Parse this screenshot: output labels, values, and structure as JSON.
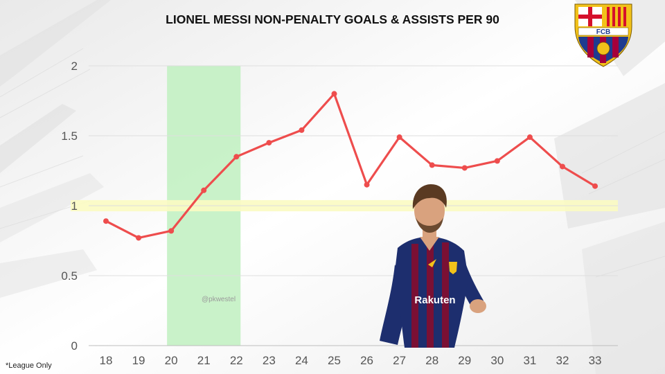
{
  "title": "LIONEL MESSI NON-PENALTY GOALS & ASSISTS PER 90",
  "footnote": "*League Only",
  "watermark": "@pkwestel",
  "crest": {
    "label": "FCB",
    "colors": {
      "gold": "#f2c21a",
      "blue": "#1f3b8f",
      "claret": "#a5003b",
      "red": "#d5102b"
    }
  },
  "player_image": {
    "icon": "player-photo",
    "kit_colors": {
      "blue": "#1d2e6e",
      "claret": "#7a1034",
      "skin": "#d9a27e"
    },
    "sponsor_text": "Rakuten"
  },
  "chart_data": {
    "type": "line",
    "title": "LIONEL MESSI NON-PENALTY GOALS & ASSISTS PER 90",
    "xlabel": "",
    "ylabel": "",
    "x": [
      18,
      19,
      20,
      21,
      22,
      23,
      24,
      25,
      26,
      27,
      28,
      29,
      30,
      31,
      32,
      33
    ],
    "x_tick_labels": [
      "18",
      "19",
      "20",
      "21",
      "22",
      "23",
      "24",
      "25",
      "26",
      "27",
      "28",
      "29",
      "30",
      "31",
      "32",
      "33"
    ],
    "series": [
      {
        "values": [
          0.89,
          0.77,
          0.82,
          1.11,
          1.35,
          1.45,
          1.54,
          1.8,
          1.15,
          1.49,
          1.29,
          1.27,
          1.32,
          1.49,
          1.28,
          1.14
        ],
        "color": "#ee4d4d"
      }
    ],
    "ylim": [
      0,
      2
    ],
    "y_ticks": [
      0,
      0.5,
      1,
      1.5,
      2
    ],
    "y_tick_labels": [
      "0",
      "0.5",
      "1",
      "1.5",
      "2"
    ],
    "grid": true,
    "highlight_band_x": [
      20,
      22
    ],
    "highlight_band_color": "#bff0bf",
    "reference_band_y": [
      0.96,
      1.04
    ],
    "reference_band_color": "#fbfbc2"
  }
}
